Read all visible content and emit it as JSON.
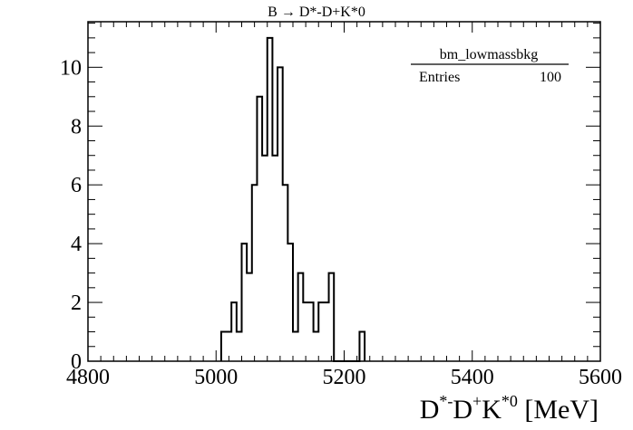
{
  "chart_data": {
    "type": "bar",
    "style": "step-histogram",
    "title": "B → D*-D+K*0",
    "xlabel": "D*-D+K*0 [MeV]",
    "xlabel_parts": {
      "base1": "D",
      "sup1": "*-",
      "base2": "D",
      "sup2": "+",
      "base3": "K",
      "sup3": "*0",
      "unit": " [MeV]"
    },
    "ylabel": "",
    "xlim": [
      4800,
      5600
    ],
    "ylim": [
      0,
      11.55
    ],
    "x_ticks": [
      4800,
      5000,
      5200,
      5400,
      5600
    ],
    "y_ticks": [
      0,
      2,
      4,
      6,
      8,
      10
    ],
    "x_tick_labels": [
      "4800",
      "5000",
      "5200",
      "5400",
      "5600"
    ],
    "y_tick_labels": [
      "0",
      "2",
      "4",
      "6",
      "8",
      "10"
    ],
    "x_minor_step": 20,
    "y_minor_step": 0.5,
    "bin_width": 8,
    "bins_low": [
      5008,
      5016,
      5024,
      5032,
      5040,
      5048,
      5056,
      5064,
      5072,
      5080,
      5088,
      5096,
      5104,
      5112,
      5120,
      5128,
      5136,
      5144,
      5152,
      5160,
      5168,
      5176,
      5184,
      5192,
      5200,
      5208,
      5216,
      5224
    ],
    "values": [
      1,
      1,
      2,
      1,
      4,
      3,
      6,
      9,
      7,
      11,
      7,
      10,
      6,
      4,
      1,
      3,
      2,
      2,
      1,
      2,
      2,
      3,
      0,
      0,
      0,
      0,
      0,
      1
    ],
    "grid": false,
    "legend": {
      "placement": "top-right",
      "name": "bm_lowmassbkg",
      "entries_label": "Entries",
      "entries_value": "100"
    }
  }
}
